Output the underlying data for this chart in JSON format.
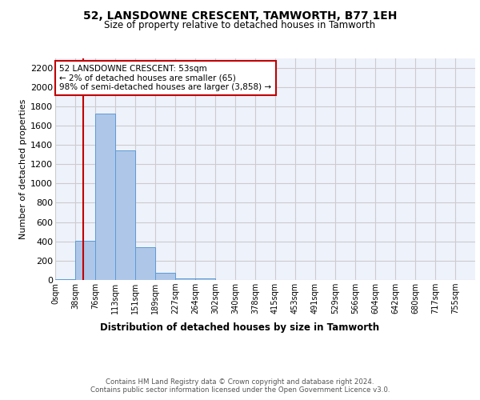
{
  "title": "52, LANSDOWNE CRESCENT, TAMWORTH, B77 1EH",
  "subtitle": "Size of property relative to detached houses in Tamworth",
  "xlabel": "Distribution of detached houses by size in Tamworth",
  "ylabel": "Number of detached properties",
  "categories": [
    "0sqm",
    "38sqm",
    "76sqm",
    "113sqm",
    "151sqm",
    "189sqm",
    "227sqm",
    "264sqm",
    "302sqm",
    "340sqm",
    "378sqm",
    "415sqm",
    "453sqm",
    "491sqm",
    "529sqm",
    "566sqm",
    "604sqm",
    "642sqm",
    "680sqm",
    "717sqm",
    "755sqm"
  ],
  "values": [
    10,
    410,
    1720,
    1340,
    340,
    75,
    20,
    20,
    0,
    0,
    0,
    0,
    0,
    0,
    0,
    0,
    0,
    0,
    0,
    0,
    0
  ],
  "bar_color": "#aec6e8",
  "bar_edge_color": "#5b9bd5",
  "grid_color": "#cccccc",
  "vline_x": 1.4,
  "vline_color": "#c00000",
  "annotation_text": "52 LANSDOWNE CRESCENT: 53sqm\n← 2% of detached houses are smaller (65)\n98% of semi-detached houses are larger (3,858) →",
  "annotation_box_color": "#ffffff",
  "annotation_border_color": "#c00000",
  "ylim": [
    0,
    2300
  ],
  "yticks": [
    0,
    200,
    400,
    600,
    800,
    1000,
    1200,
    1400,
    1600,
    1800,
    2000,
    2200
  ],
  "footer": "Contains HM Land Registry data © Crown copyright and database right 2024.\nContains public sector information licensed under the Open Government Licence v3.0.",
  "bg_color": "#eef2fb"
}
